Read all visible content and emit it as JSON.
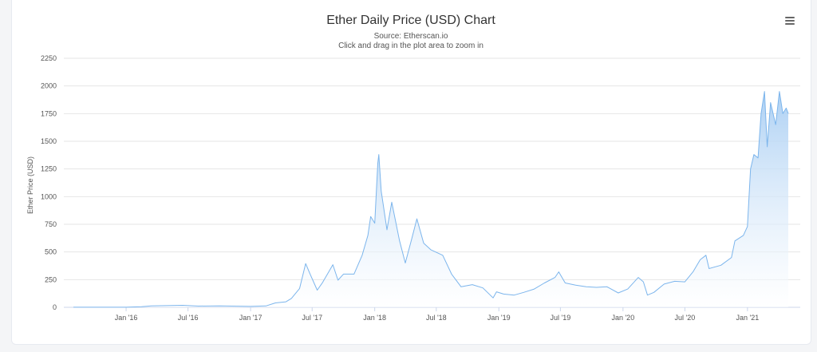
{
  "chart_data": {
    "type": "area",
    "title": "Ether Daily Price (USD) Chart",
    "subtitle_lines": [
      "Source: Etherscan.io",
      "Click and drag in the plot area to zoom in"
    ],
    "ylabel": "Ether Price (USD)",
    "xlabel": "",
    "ylim": [
      0,
      2250
    ],
    "yticks": [
      "0",
      "250",
      "500",
      "750",
      "1000",
      "1250",
      "1500",
      "1750",
      "2000",
      "2250"
    ],
    "xticks": [
      "Jan '16",
      "Jul '16",
      "Jan '17",
      "Jul '17",
      "Jan '18",
      "Jul '18",
      "Jan '19",
      "Jul '19",
      "Jan '20",
      "Jul '20",
      "Jan '21"
    ],
    "x_range": [
      "2015-07-30",
      "2021-05-01"
    ],
    "grid": true,
    "legend": "none",
    "colors": {
      "line": "#7cb5ec",
      "fill_top": "#a9cef3",
      "fill_bottom": "#ffffff"
    },
    "series": [
      {
        "points": [
          [
            "2015-07-30",
            1
          ],
          [
            "2015-12-01",
            1
          ],
          [
            "2016-01-01",
            1
          ],
          [
            "2016-02-15",
            5
          ],
          [
            "2016-03-15",
            12
          ],
          [
            "2016-06-15",
            18
          ],
          [
            "2016-08-01",
            11
          ],
          [
            "2016-10-01",
            13
          ],
          [
            "2017-01-01",
            8
          ],
          [
            "2017-02-15",
            12
          ],
          [
            "2017-03-15",
            40
          ],
          [
            "2017-04-15",
            50
          ],
          [
            "2017-05-01",
            80
          ],
          [
            "2017-05-25",
            170
          ],
          [
            "2017-06-12",
            395
          ],
          [
            "2017-06-25",
            300
          ],
          [
            "2017-07-16",
            155
          ],
          [
            "2017-08-01",
            225
          ],
          [
            "2017-08-31",
            385
          ],
          [
            "2017-09-15",
            245
          ],
          [
            "2017-10-01",
            300
          ],
          [
            "2017-11-01",
            300
          ],
          [
            "2017-11-25",
            470
          ],
          [
            "2017-12-12",
            650
          ],
          [
            "2017-12-20",
            820
          ],
          [
            "2018-01-01",
            760
          ],
          [
            "2018-01-10",
            1300
          ],
          [
            "2018-01-13",
            1380
          ],
          [
            "2018-01-20",
            1050
          ],
          [
            "2018-02-06",
            700
          ],
          [
            "2018-02-20",
            950
          ],
          [
            "2018-03-15",
            600
          ],
          [
            "2018-04-01",
            400
          ],
          [
            "2018-04-20",
            620
          ],
          [
            "2018-05-05",
            800
          ],
          [
            "2018-05-25",
            580
          ],
          [
            "2018-06-15",
            520
          ],
          [
            "2018-07-20",
            470
          ],
          [
            "2018-08-15",
            300
          ],
          [
            "2018-09-12",
            185
          ],
          [
            "2018-10-15",
            205
          ],
          [
            "2018-11-15",
            175
          ],
          [
            "2018-12-15",
            85
          ],
          [
            "2018-12-25",
            140
          ],
          [
            "2019-01-15",
            120
          ],
          [
            "2019-02-15",
            110
          ],
          [
            "2019-03-15",
            135
          ],
          [
            "2019-04-15",
            165
          ],
          [
            "2019-05-15",
            220
          ],
          [
            "2019-06-15",
            270
          ],
          [
            "2019-06-26",
            320
          ],
          [
            "2019-07-15",
            220
          ],
          [
            "2019-08-15",
            200
          ],
          [
            "2019-09-15",
            185
          ],
          [
            "2019-10-15",
            180
          ],
          [
            "2019-11-15",
            185
          ],
          [
            "2019-12-18",
            130
          ],
          [
            "2020-01-15",
            165
          ],
          [
            "2020-02-15",
            270
          ],
          [
            "2020-03-01",
            230
          ],
          [
            "2020-03-13",
            110
          ],
          [
            "2020-04-01",
            135
          ],
          [
            "2020-05-01",
            210
          ],
          [
            "2020-06-01",
            235
          ],
          [
            "2020-07-01",
            230
          ],
          [
            "2020-07-25",
            320
          ],
          [
            "2020-08-15",
            430
          ],
          [
            "2020-09-01",
            470
          ],
          [
            "2020-09-10",
            350
          ],
          [
            "2020-10-15",
            380
          ],
          [
            "2020-11-15",
            450
          ],
          [
            "2020-11-25",
            600
          ],
          [
            "2020-12-20",
            650
          ],
          [
            "2021-01-01",
            730
          ],
          [
            "2021-01-10",
            1250
          ],
          [
            "2021-01-20",
            1380
          ],
          [
            "2021-02-01",
            1350
          ],
          [
            "2021-02-10",
            1750
          ],
          [
            "2021-02-20",
            1950
          ],
          [
            "2021-02-28",
            1450
          ],
          [
            "2021-03-10",
            1850
          ],
          [
            "2021-03-25",
            1650
          ],
          [
            "2021-04-05",
            1950
          ],
          [
            "2021-04-15",
            1750
          ],
          [
            "2021-04-25",
            1800
          ],
          [
            "2021-05-01",
            1750
          ]
        ]
      }
    ]
  },
  "menu_icon": "hamburger-menu-icon"
}
